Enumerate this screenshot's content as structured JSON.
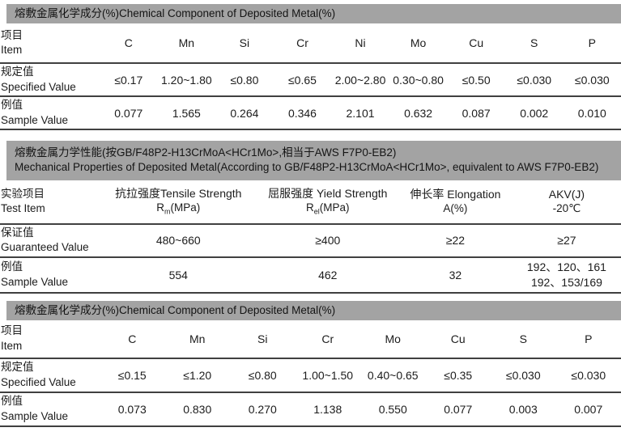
{
  "colors": {
    "bar_bg": "#a3a3a3",
    "rule": "#404040",
    "text": "#1c1c1c",
    "page_bg": "#ffffff"
  },
  "s1": {
    "bar": "熔敷金属化学成分(%)Chemical Component of Deposited Metal(%)",
    "item_zh": "项目",
    "item_en": "Item",
    "cols": [
      "C",
      "Mn",
      "Si",
      "Cr",
      "Ni",
      "Mo",
      "Cu",
      "S",
      "P"
    ],
    "r1_zh": "规定值",
    "r1_en": "Specified Value",
    "r1": [
      "≤0.17",
      "1.20~1.80",
      "≤0.80",
      "≤0.65",
      "2.00~2.80",
      "0.30~0.80",
      "≤0.50",
      "≤0.030",
      "≤0.030"
    ],
    "r2_zh": "例值",
    "r2_en": "Sample Value",
    "r2": [
      "0.077",
      "1.565",
      "0.264",
      "0.346",
      "2.101",
      "0.632",
      "0.087",
      "0.002",
      "0.010"
    ]
  },
  "s2": {
    "bar1": "熔敷金属力学性能(按GB/F48P2-H13CrMoA<HCr1Mo>,相当于AWS F7P0-EB2)",
    "bar2": "Mechanical Properties of Deposited Metal(According to GB/F48P2-H13CrMoA<HCr1Mo>, equivalent to AWS F7P0-EB2)",
    "item_zh": "实验项目",
    "item_en": "Test Item",
    "col1_l1": "抗拉强度Tensile Strength",
    "col1_pre": "R",
    "col1_sub": "m",
    "col1_suf": "(MPa)",
    "col2_l1": "屈服强度 Yield Strength",
    "col2_pre": "R",
    "col2_sub": "el",
    "col2_suf": "(MPa)",
    "col3_l1": "伸长率 Elongation",
    "col3_l2": "A(%)",
    "col4_l1": "AKV(J)",
    "col4_l2": "-20℃",
    "r1_zh": "保证值",
    "r1_en": "Guaranteed Value",
    "r1": [
      "480~660",
      "≥400",
      "≥22",
      "≥27"
    ],
    "r2_zh": "例值",
    "r2_en": "Sample Value",
    "r2_c1": "554",
    "r2_c2": "462",
    "r2_c3": "32",
    "r2_c4_l1": "192、120、161",
    "r2_c4_l2": "192、153/169"
  },
  "s3": {
    "bar": "熔敷金属化学成分(%)Chemical Component of Deposited Metal(%)",
    "item_zh": "项目",
    "item_en": "Item",
    "cols": [
      "C",
      "Mn",
      "Si",
      "Cr",
      "Mo",
      "Cu",
      "S",
      "P"
    ],
    "r1_zh": "规定值",
    "r1_en": "Specified Value",
    "r1": [
      "≤0.15",
      "≤1.20",
      "≤0.80",
      "1.00~1.50",
      "0.40~0.65",
      "≤0.35",
      "≤0.030",
      "≤0.030"
    ],
    "r2_zh": "例值",
    "r2_en": "Sample Value",
    "r2": [
      "0.073",
      "0.830",
      "0.270",
      "1.138",
      "0.550",
      "0.077",
      "0.003",
      "0.007"
    ]
  }
}
